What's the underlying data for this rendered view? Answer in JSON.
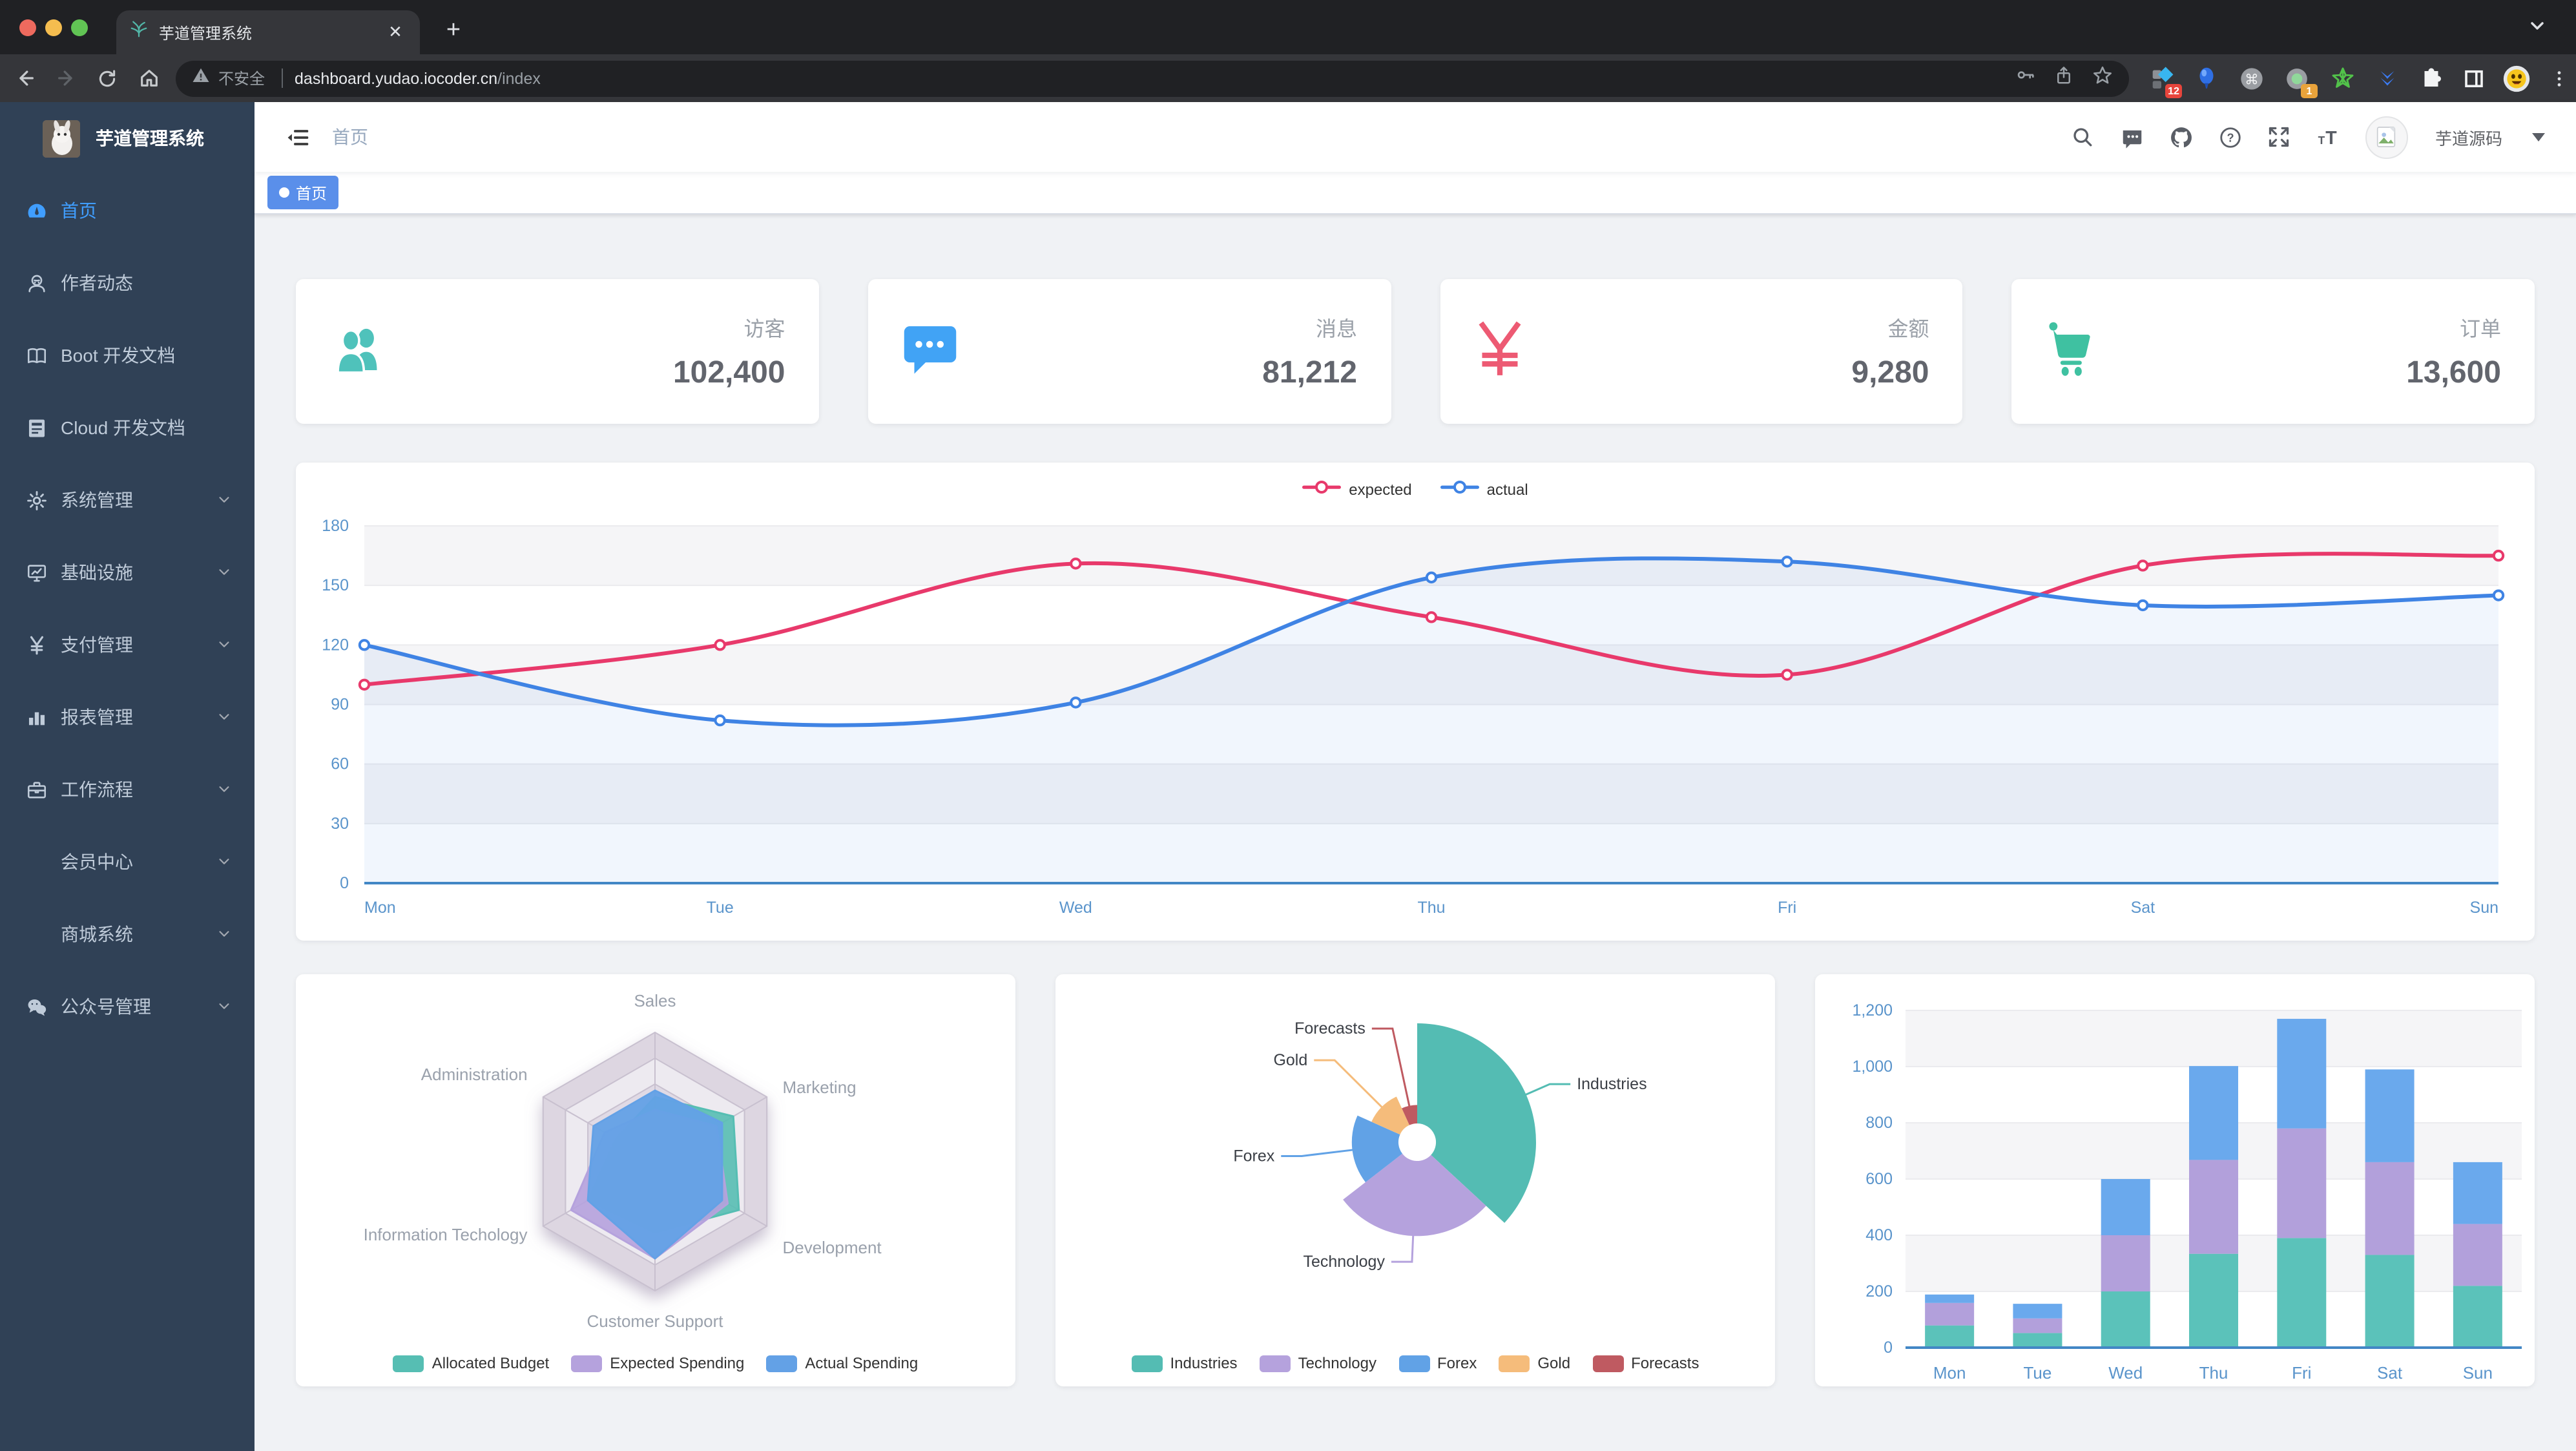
{
  "browser": {
    "tab_title": "芋道管理系统",
    "security_label": "不安全",
    "url_host": "dashboard.yudao.iocoder.cn",
    "url_path": "/index",
    "pill_icons": [
      "key-icon",
      "share-icon",
      "bookmark-star-icon"
    ],
    "extension_icons": [
      {
        "icon": "blue-diamond-extension-icon",
        "badge": "12",
        "badge_color": "#e8453c"
      },
      {
        "icon": "balloon-extension-icon",
        "badge": null
      },
      {
        "icon": "command-extension-icon",
        "badge": null
      },
      {
        "icon": "recorder-extension-icon",
        "badge": "1",
        "badge_color": "#e9a33b"
      },
      {
        "icon": "green-star-extension-icon",
        "badge": null
      },
      {
        "icon": "chevrons-extension-icon",
        "badge": null
      }
    ],
    "toolbar_icons": [
      "puzzle-icon",
      "side-panel-icon",
      "profile-avatar-icon",
      "kebab-menu-icon"
    ]
  },
  "sidebar": {
    "logo_title": "芋道管理系统",
    "items": [
      {
        "label": "首页",
        "icon": "dashboard-icon",
        "active": true,
        "arrow": false,
        "sub": false
      },
      {
        "label": "作者动态",
        "icon": "people-icon",
        "active": false,
        "arrow": false,
        "sub": false
      },
      {
        "label": "Boot 开发文档",
        "icon": "book-icon",
        "active": false,
        "arrow": false,
        "sub": false
      },
      {
        "label": "Cloud 开发文档",
        "icon": "document-icon",
        "active": false,
        "arrow": false,
        "sub": false
      },
      {
        "label": "系统管理",
        "icon": "gear-icon",
        "active": false,
        "arrow": true,
        "sub": false
      },
      {
        "label": "基础设施",
        "icon": "monitor-icon",
        "active": false,
        "arrow": true,
        "sub": false
      },
      {
        "label": "支付管理",
        "icon": "yen-icon",
        "active": false,
        "arrow": true,
        "sub": false
      },
      {
        "label": "报表管理",
        "icon": "bar-chart-icon",
        "active": false,
        "arrow": true,
        "sub": false
      },
      {
        "label": "工作流程",
        "icon": "briefcase-icon",
        "active": false,
        "arrow": true,
        "sub": false
      },
      {
        "label": "会员中心",
        "icon": null,
        "active": false,
        "arrow": true,
        "sub": true
      },
      {
        "label": "商城系统",
        "icon": null,
        "active": false,
        "arrow": true,
        "sub": true
      },
      {
        "label": "公众号管理",
        "icon": "wechat-icon",
        "active": false,
        "arrow": true,
        "sub": false
      }
    ]
  },
  "header": {
    "breadcrumb": "首页",
    "icons": [
      "search-icon",
      "message-icon",
      "github-icon",
      "question-icon",
      "fullscreen-icon",
      "font-size-icon"
    ],
    "user_name": "芋道源码"
  },
  "tags": [
    {
      "label": "首页",
      "active": true,
      "color": "#5a8fea"
    }
  ],
  "stats": [
    {
      "label": "访客",
      "value": "102,400",
      "icon": "people-group-icon",
      "color": "#4fc2bb"
    },
    {
      "label": "消息",
      "value": "81,212",
      "icon": "message-bubble-icon",
      "color": "#41a3f5"
    },
    {
      "label": "金额",
      "value": "9,280",
      "icon": "money-yen-icon",
      "color": "#ed5a73"
    },
    {
      "label": "订单",
      "value": "13,600",
      "icon": "shopping-cart-icon",
      "color": "#3fc1a1"
    }
  ],
  "chart_data": [
    {
      "type": "line",
      "categories": [
        "Mon",
        "Tue",
        "Wed",
        "Thu",
        "Fri",
        "Sat",
        "Sun"
      ],
      "series": [
        {
          "name": "expected",
          "color": "#e8396b",
          "values": [
            100,
            120,
            161,
            134,
            105,
            160,
            165
          ],
          "area": false
        },
        {
          "name": "actual",
          "color": "#3f83e4",
          "values": [
            120,
            82,
            91,
            154,
            162,
            140,
            145
          ],
          "area": true
        }
      ],
      "ylim": [
        0,
        180
      ],
      "ytick_step": 30,
      "legend_position": "top-center",
      "grid": true,
      "axis_color": "#4287c5",
      "axis_label_color": "#5a94cb"
    },
    {
      "type": "radar",
      "indicators": [
        {
          "name": "Sales",
          "max": 10000
        },
        {
          "name": "Administration",
          "max": 20000
        },
        {
          "name": "Information Techology",
          "max": 20000
        },
        {
          "name": "Customer Support",
          "max": 20000
        },
        {
          "name": "Development",
          "max": 20000
        },
        {
          "name": "Marketing",
          "max": 20000
        }
      ],
      "series": [
        {
          "name": "Allocated Budget",
          "color": "#56beb3",
          "values": [
            5000,
            7000,
            12000,
            11000,
            15000,
            14000
          ]
        },
        {
          "name": "Expected Spending",
          "color": "#b5a2dd",
          "values": [
            4000,
            9000,
            15000,
            15000,
            13000,
            11000
          ]
        },
        {
          "name": "Actual Spending",
          "color": "#63a1e6",
          "values": [
            5500,
            11000,
            12000,
            15000,
            12000,
            12000
          ]
        }
      ],
      "levels": 5,
      "legend_position": "bottom-center"
    },
    {
      "type": "pie",
      "rose": true,
      "items": [
        {
          "name": "Industries",
          "value": 320,
          "color": "#54bcb3"
        },
        {
          "name": "Technology",
          "value": 240,
          "color": "#b5a2dd"
        },
        {
          "name": "Forex",
          "value": 149,
          "color": "#61a2e6"
        },
        {
          "name": "Gold",
          "value": 100,
          "color": "#f5bc7b"
        },
        {
          "name": "Forecasts",
          "value": 59,
          "color": "#bf5a61"
        }
      ],
      "inner_radius_ratio": 0.16,
      "legend_position": "bottom-center"
    },
    {
      "type": "bar",
      "stacked": true,
      "categories": [
        "Mon",
        "Tue",
        "Wed",
        "Thu",
        "Fri",
        "Sat",
        "Sun"
      ],
      "series": [
        {
          "color": "#5bc2ba",
          "values": [
            79,
            52,
            200,
            334,
            390,
            330,
            220
          ]
        },
        {
          "color": "#b2a0db",
          "values": [
            80,
            52,
            200,
            334,
            390,
            330,
            220
          ]
        },
        {
          "color": "#6aa9ed",
          "values": [
            30,
            52,
            200,
            334,
            390,
            330,
            220
          ]
        }
      ],
      "ylim": [
        0,
        1200
      ],
      "ytick_step": 200,
      "axis_color": "#4287c5",
      "axis_label_color": "#5a94cb"
    }
  ]
}
